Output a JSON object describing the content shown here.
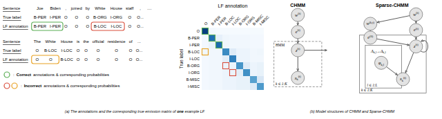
{
  "chart_data": {
    "type": "heatmap",
    "x_label": "LF annotation",
    "y_label": "True label",
    "x_categories": [
      "O",
      "B-PER",
      "I-PER",
      "B-LOC",
      "I-LOC",
      "B-ORG",
      "I-ORG",
      "B-MISC",
      "I-MISC"
    ],
    "y_categories": [
      "O",
      "B-PER",
      "I-PER",
      "B-LOC",
      "I-LOC",
      "B-ORG",
      "I-ORG",
      "B-MISC",
      "I-MISC"
    ],
    "values": [
      [
        0.9,
        0.02,
        0.01,
        0.01,
        0.01,
        0.01,
        0.01,
        0.01,
        0.01
      ],
      [
        0.02,
        0.72,
        0.08,
        0.04,
        0.03,
        0.03,
        0.03,
        0.02,
        0.02
      ],
      [
        0.02,
        0.06,
        0.74,
        0.04,
        0.03,
        0.03,
        0.03,
        0.02,
        0.02
      ],
      [
        0.03,
        0.03,
        0.03,
        0.62,
        0.12,
        0.05,
        0.05,
        0.03,
        0.04
      ],
      [
        0.02,
        0.03,
        0.03,
        0.1,
        0.66,
        0.05,
        0.05,
        0.03,
        0.03
      ],
      [
        0.02,
        0.03,
        0.03,
        0.05,
        0.05,
        0.58,
        0.12,
        0.05,
        0.07
      ],
      [
        0.02,
        0.03,
        0.03,
        0.05,
        0.05,
        0.1,
        0.6,
        0.05,
        0.07
      ],
      [
        0.02,
        0.03,
        0.03,
        0.05,
        0.05,
        0.07,
        0.07,
        0.53,
        0.15
      ],
      [
        0.02,
        0.03,
        0.03,
        0.05,
        0.05,
        0.07,
        0.07,
        0.12,
        0.56
      ]
    ],
    "color_range": [
      0,
      0.95
    ],
    "highlights": [
      {
        "y": "O",
        "x": "O",
        "color": "#5aad54"
      },
      {
        "y": "B-PER",
        "x": "B-PER",
        "color": "#5aad54"
      },
      {
        "y": "I-PER",
        "x": "I-PER",
        "color": "#5aad54"
      },
      {
        "y": "B-LOC",
        "x": "O",
        "color": "#e8a020"
      },
      {
        "y": "B-ORG",
        "x": "B-LOC",
        "color": "#d94f3d"
      },
      {
        "y": "I-ORG",
        "x": "I-LOC",
        "color": "#d94f3d"
      }
    ],
    "row_labels": [
      "Sentence",
      "True label",
      "LF annotation"
    ],
    "sentences": [
      {
        "words": [
          "Joe",
          "Biden",
          ",",
          "joined",
          "by",
          "White",
          "House",
          "staff",
          ",",
          "...."
        ],
        "true": [
          "B-PER",
          "I-PER",
          "O",
          "O",
          "O",
          "B-ORG",
          "I-ORG",
          "O",
          "O..."
        ],
        "lf": [
          "B-PER",
          "I-PER",
          "O",
          "O",
          "O",
          "B-LOC",
          "I-LOC",
          "O",
          "O..."
        ],
        "highlights": [
          {
            "from": 0,
            "to": 1,
            "color": "#5aad54"
          },
          {
            "from": 5,
            "to": 6,
            "color": "#d94f3d"
          }
        ]
      },
      {
        "words": [
          "The",
          "White",
          "House",
          "is",
          "the",
          "official",
          "residence",
          "of",
          "..."
        ],
        "true": [
          "O",
          "B-LOC",
          "I-LOC",
          "O",
          "O",
          "O",
          "O",
          "O",
          "O..."
        ],
        "lf": [
          "O",
          "O",
          "B-LOC",
          "O",
          "O",
          "O",
          "O",
          "O",
          "O..."
        ],
        "highlights": [
          {
            "from": 0,
            "to": 1,
            "color": "#e8a020"
          }
        ]
      }
    ],
    "key_separator": ":",
    "key": [
      {
        "colors": [
          "#5aad54"
        ],
        "label": "Correct",
        "text": "annotations & corresponding probabilities"
      },
      {
        "colors": [
          "#d94f3d",
          "#e8a020"
        ],
        "label": "Incorrect",
        "text": "annotations & corresponding probabilities"
      }
    ],
    "caption_a": [
      "(a) The annotations and the corresponding true emission matrix of ",
      "one",
      " example LF"
    ],
    "caption_b": "(b) Model structures of CHMM and Sparse-CHMM",
    "diagrams": [
      {
        "title": "CHMM",
        "nodes": [
          {
            "base": "w",
            "sup": "(t)"
          },
          {
            "base": "e",
            "sup": "(t)"
          },
          {
            "base": "z",
            "sup": "(t)"
          },
          {
            "base": "x",
            "sub": "k",
            "sup": "(t)"
          }
        ],
        "plates": [
          "HMM",
          "k ∈ 1:K"
        ]
      },
      {
        "title": "Sparse-CHMM",
        "nodes": [
          {
            "base": "w",
            "sup": "(t)"
          },
          {
            "base": "w",
            "sup": "(k,t)"
          },
          {
            "base": "e",
            "sup": "(0)"
          },
          {
            "base": "e",
            "sup": "(t)"
          },
          {
            "base": "z",
            "sup": "(t)"
          },
          {
            "base": "x",
            "sub": "k",
            "sup": "(t)"
          },
          {
            "base": "φ",
            "sub": "k,l"
          }
        ],
        "note": [
          {
            "base": "Λ",
            "sub": "k,l"
          },
          {
            "base": "→"
          },
          {
            "base": "Δ",
            "sub": "k,l"
          }
        ],
        "plates": [
          "l ∈ 1:L",
          "k ∈ 1:K"
        ]
      }
    ]
  }
}
